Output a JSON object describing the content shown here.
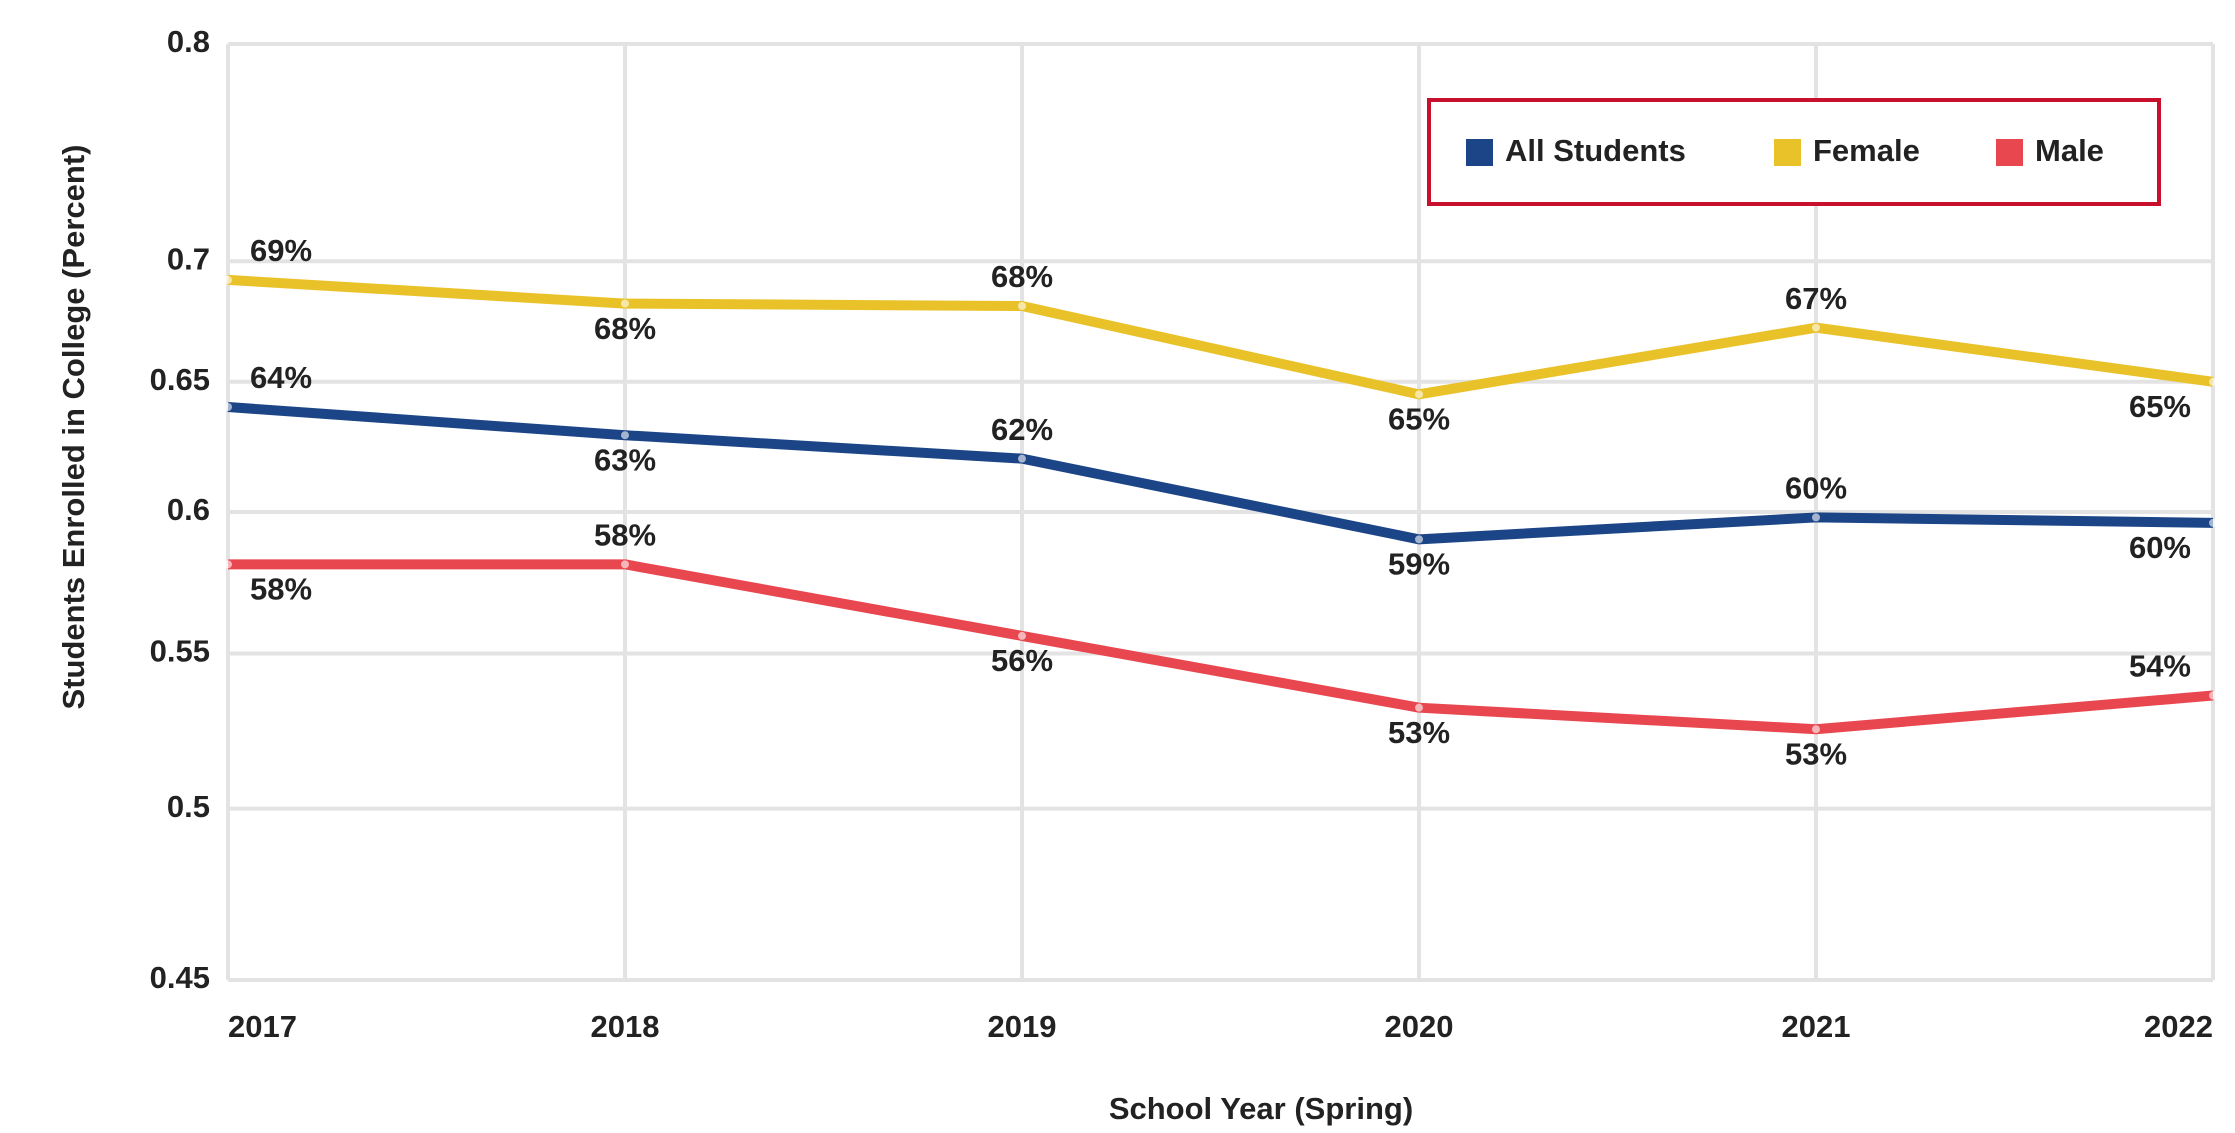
{
  "chart_data": {
    "type": "line",
    "y_label": "Students Enrolled in College (Percent)",
    "x_label": "School Year (Spring)",
    "categories": [
      "2017",
      "2018",
      "2019",
      "2020",
      "2021",
      "2022"
    ],
    "series": [
      {
        "name": "All Students",
        "color": "#1c4587",
        "values": [
          0.64,
          0.629,
          0.62,
          0.59,
          0.598,
          0.596
        ],
        "value_labels": [
          "64%",
          "63%",
          "62%",
          "59%",
          "60%",
          "60%"
        ]
      },
      {
        "name": "Female",
        "color": "#e9c22a",
        "values": [
          0.692,
          0.682,
          0.681,
          0.645,
          0.672,
          0.65
        ],
        "value_labels": [
          "69%",
          "68%",
          "68%",
          "65%",
          "67%",
          "65%"
        ]
      },
      {
        "name": "Male",
        "color": "#e8474f",
        "values": [
          0.581,
          0.581,
          0.556,
          0.532,
          0.525,
          0.536
        ],
        "value_labels": [
          "58%",
          "58%",
          "56%",
          "53%",
          "53%",
          "54%"
        ]
      }
    ],
    "ylim": [
      0.45,
      0.8
    ],
    "yticks": [
      0.45,
      0.5,
      0.55,
      0.6,
      0.65,
      0.7,
      0.8
    ],
    "log_y": true,
    "grid": true,
    "legend": "top-right"
  }
}
